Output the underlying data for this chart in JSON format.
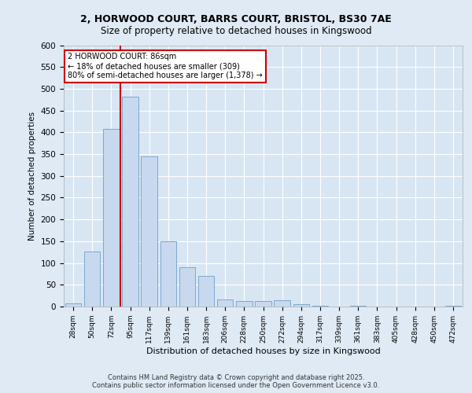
{
  "title_line1": "2, HORWOOD COURT, BARRS COURT, BRISTOL, BS30 7AE",
  "title_line2": "Size of property relative to detached houses in Kingswood",
  "xlabel": "Distribution of detached houses by size in Kingswood",
  "ylabel": "Number of detached properties",
  "categories": [
    "28sqm",
    "50sqm",
    "72sqm",
    "95sqm",
    "117sqm",
    "139sqm",
    "161sqm",
    "183sqm",
    "206sqm",
    "228sqm",
    "250sqm",
    "272sqm",
    "294sqm",
    "317sqm",
    "339sqm",
    "361sqm",
    "383sqm",
    "405sqm",
    "428sqm",
    "450sqm",
    "472sqm"
  ],
  "values": [
    7,
    127,
    408,
    481,
    344,
    150,
    91,
    70,
    17,
    13,
    12,
    15,
    5,
    1,
    0,
    2,
    0,
    0,
    0,
    0,
    1
  ],
  "bar_color": "#c8d9ef",
  "bar_edge_color": "#7aa8d0",
  "vline_color": "#cc0000",
  "vline_x": 2.5,
  "annotation_text": "2 HORWOOD COURT: 86sqm\n← 18% of detached houses are smaller (309)\n80% of semi-detached houses are larger (1,378) →",
  "annotation_box_color": "#ffffff",
  "annotation_box_edge": "#cc0000",
  "ylim": [
    0,
    600
  ],
  "yticks": [
    0,
    50,
    100,
    150,
    200,
    250,
    300,
    350,
    400,
    450,
    500,
    550,
    600
  ],
  "background_color": "#e0eaf4",
  "plot_background": "#d8e6f3",
  "footer_line1": "Contains HM Land Registry data © Crown copyright and database right 2025.",
  "footer_line2": "Contains public sector information licensed under the Open Government Licence v3.0."
}
